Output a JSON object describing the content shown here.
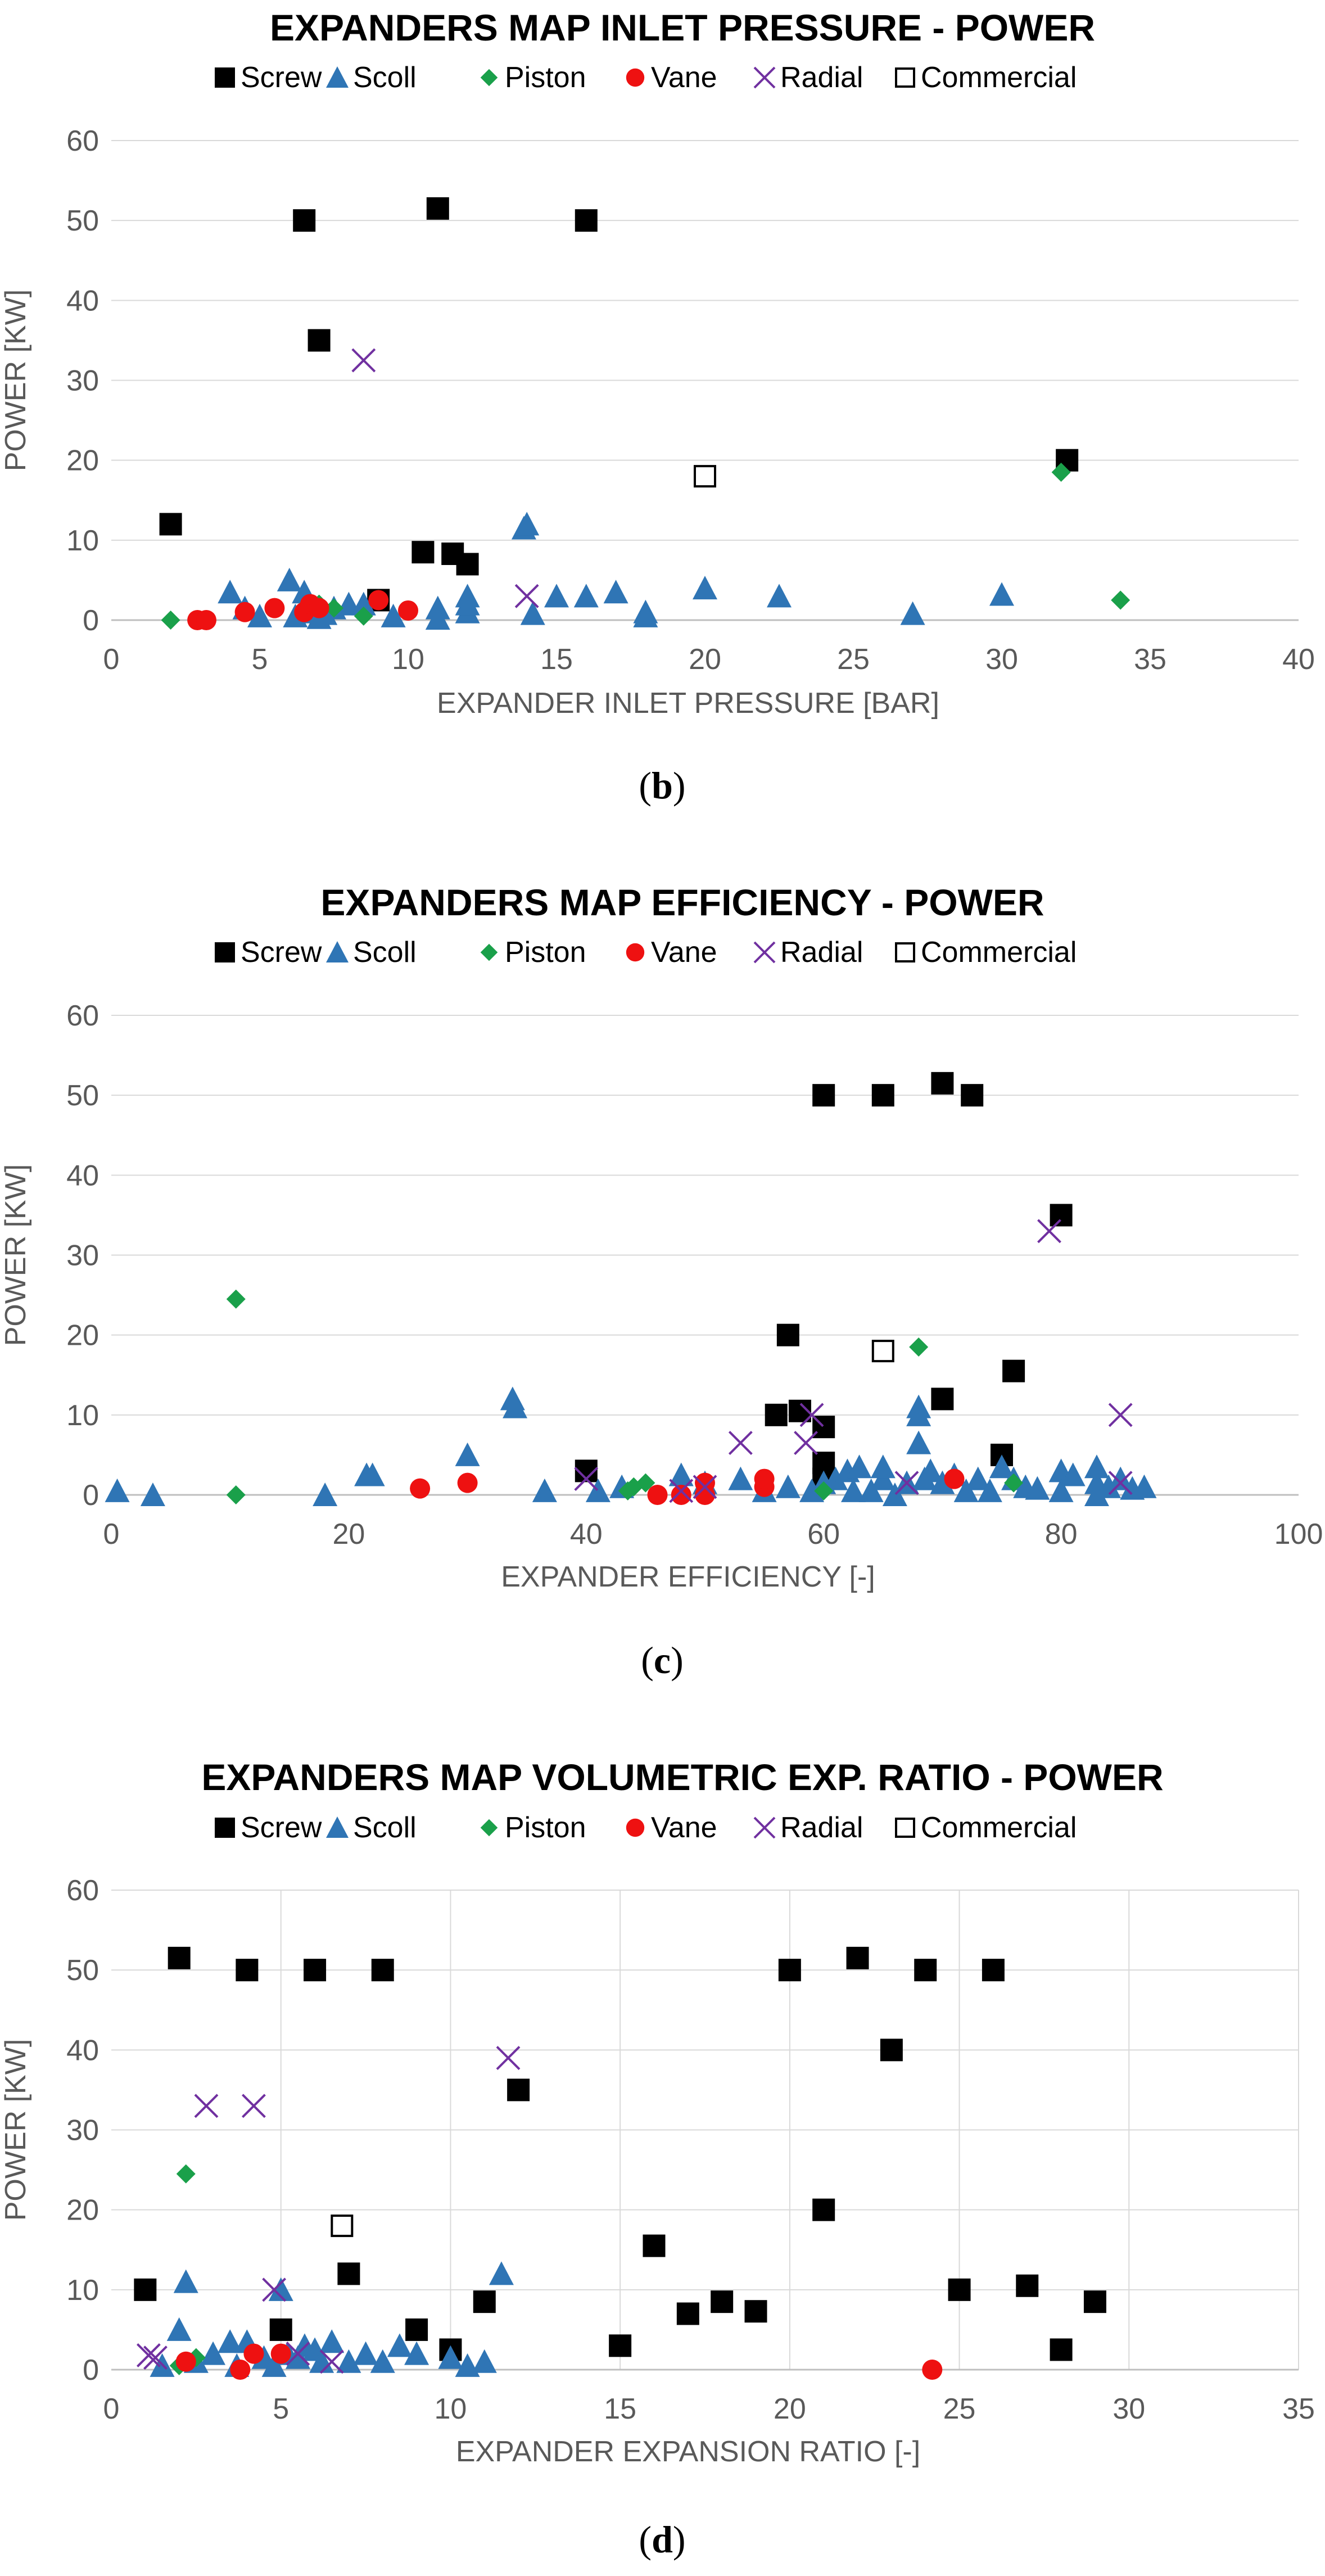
{
  "series_styles": {
    "Screw": {
      "color": "#000000",
      "marker": "square"
    },
    "Scoll": {
      "color": "#2f75b5",
      "marker": "triangle"
    },
    "Piston": {
      "color": "#1aa04a",
      "marker": "diamond"
    },
    "Vane": {
      "color": "#ee1111",
      "marker": "circle"
    },
    "Radial": {
      "color": "#7030a0",
      "marker": "x"
    },
    "Commercial": {
      "color": "#000000",
      "marker": "open-square"
    }
  },
  "chart_data": [
    {
      "type": "scatter",
      "title": "EXPANDERS MAP INLET PRESSURE - POWER",
      "xlabel": "EXPANDER INLET PRESSURE [BAR]",
      "ylabel": "POWER [KW]",
      "xlim": [
        0,
        40
      ],
      "ylim": [
        0,
        60
      ],
      "xticks": [
        0,
        5,
        10,
        15,
        20,
        25,
        30,
        35,
        40
      ],
      "yticks": [
        0,
        10,
        20,
        30,
        40,
        50,
        60
      ],
      "vgrid": false,
      "panel": {
        "open": "(",
        "letter": "b",
        "close": ")"
      },
      "legend": [
        "Screw",
        "Scoll",
        "Piston",
        "Vane",
        "Radial",
        "Commercial"
      ],
      "series": [
        {
          "name": "Screw",
          "points": [
            [
              6.5,
              50
            ],
            [
              11,
              51.5
            ],
            [
              16,
              50
            ],
            [
              7,
              35
            ],
            [
              2,
              12
            ],
            [
              10.5,
              8.5
            ],
            [
              11.5,
              8.3
            ],
            [
              12,
              7
            ],
            [
              9,
              2.5
            ],
            [
              32.2,
              20
            ]
          ]
        },
        {
          "name": "Scoll",
          "points": [
            [
              4,
              3.5
            ],
            [
              4.5,
              1.5
            ],
            [
              5,
              0.5
            ],
            [
              6,
              5
            ],
            [
              6.2,
              0.5
            ],
            [
              6.5,
              3.5
            ],
            [
              7,
              0.3
            ],
            [
              7.5,
              1.5
            ],
            [
              8,
              2
            ],
            [
              8.5,
              2
            ],
            [
              9.5,
              0.5
            ],
            [
              11,
              1.5
            ],
            [
              11,
              0.2
            ],
            [
              12,
              3
            ],
            [
              12,
              1
            ],
            [
              12,
              2
            ],
            [
              13.9,
              11.5
            ],
            [
              14,
              12
            ],
            [
              14.2,
              0.8
            ],
            [
              15,
              3
            ],
            [
              16,
              3
            ],
            [
              17,
              3.5
            ],
            [
              18,
              1
            ],
            [
              18,
              0.5
            ],
            [
              20,
              4
            ],
            [
              22.5,
              3
            ],
            [
              27,
              0.8
            ],
            [
              30,
              3.2
            ],
            [
              6.8,
              1
            ],
            [
              7.2,
              0.8
            ]
          ]
        },
        {
          "name": "Piston",
          "points": [
            [
              2,
              0
            ],
            [
              6.5,
              1.5
            ],
            [
              7,
              2
            ],
            [
              7.5,
              1.5
            ],
            [
              8.5,
              0.5
            ],
            [
              32,
              18.5
            ],
            [
              34,
              2.5
            ]
          ]
        },
        {
          "name": "Vane",
          "points": [
            [
              2.9,
              0
            ],
            [
              3.2,
              0
            ],
            [
              4.5,
              1
            ],
            [
              5.5,
              1.5
            ],
            [
              6.5,
              1
            ],
            [
              6.7,
              2
            ],
            [
              7,
              1.5
            ],
            [
              9,
              2.5
            ],
            [
              10,
              1.2
            ]
          ]
        },
        {
          "name": "Radial",
          "points": [
            [
              8.5,
              32.5
            ],
            [
              14,
              3
            ]
          ]
        },
        {
          "name": "Commercial",
          "points": [
            [
              20,
              18
            ]
          ]
        }
      ]
    },
    {
      "type": "scatter",
      "title": "EXPANDERS MAP EFFICIENCY - POWER",
      "xlabel": "EXPANDER EFFICIENCY [-]",
      "ylabel": "POWER [KW]",
      "xlim": [
        0,
        100
      ],
      "ylim": [
        0,
        60
      ],
      "xticks": [
        0,
        20,
        40,
        60,
        80,
        100
      ],
      "yticks": [
        0,
        10,
        20,
        30,
        40,
        50,
        60
      ],
      "vgrid": false,
      "panel": {
        "open": "(",
        "letter": "c",
        "close": ")"
      },
      "legend": [
        "Screw",
        "Scoll",
        "Piston",
        "Vane",
        "Radial",
        "Commercial"
      ],
      "series": [
        {
          "name": "Screw",
          "points": [
            [
              60,
              50
            ],
            [
              65,
              50
            ],
            [
              70,
              51.5
            ],
            [
              72.5,
              50
            ],
            [
              80,
              35
            ],
            [
              57,
              20
            ],
            [
              70,
              12
            ],
            [
              56,
              10
            ],
            [
              58,
              10.5
            ],
            [
              60,
              8.5
            ],
            [
              76,
              15.5
            ],
            [
              75,
              5
            ],
            [
              60,
              4
            ],
            [
              60,
              2
            ],
            [
              40,
              3
            ]
          ]
        },
        {
          "name": "Scoll",
          "points": [
            [
              0.5,
              0.5
            ],
            [
              3.5,
              0
            ],
            [
              18,
              0
            ],
            [
              21.5,
              2.5
            ],
            [
              22,
              2.5
            ],
            [
              30,
              5
            ],
            [
              33.8,
              12
            ],
            [
              34,
              11
            ],
            [
              36.5,
              0.5
            ],
            [
              41,
              0.5
            ],
            [
              43,
              1
            ],
            [
              48,
              2.5
            ],
            [
              50,
              1.5
            ],
            [
              53,
              2
            ],
            [
              55,
              0.5
            ],
            [
              57,
              1
            ],
            [
              59,
              0.5
            ],
            [
              60,
              1.5
            ],
            [
              61,
              2
            ],
            [
              62,
              3
            ],
            [
              62.5,
              0.5
            ],
            [
              63,
              3.5
            ],
            [
              64,
              0.5
            ],
            [
              65,
              2
            ],
            [
              65,
              3.5
            ],
            [
              66,
              0
            ],
            [
              67,
              1.5
            ],
            [
              68,
              10
            ],
            [
              68,
              11
            ],
            [
              68,
              6.5
            ],
            [
              68.5,
              2
            ],
            [
              69,
              3
            ],
            [
              70,
              1.5
            ],
            [
              71,
              2.5
            ],
            [
              72,
              0.5
            ],
            [
              73,
              2
            ],
            [
              74,
              0.5
            ],
            [
              75,
              3.5
            ],
            [
              76,
              2
            ],
            [
              77,
              1
            ],
            [
              78,
              0.8
            ],
            [
              80,
              3
            ],
            [
              80,
              0.5
            ],
            [
              81,
              2.5
            ],
            [
              83,
              3.5
            ],
            [
              83,
              1.5
            ],
            [
              83,
              0
            ],
            [
              84,
              1
            ],
            [
              85,
              2
            ],
            [
              86,
              0.8
            ],
            [
              87,
              1
            ]
          ]
        },
        {
          "name": "Piston",
          "points": [
            [
              10.5,
              24.5
            ],
            [
              10.5,
              0
            ],
            [
              43.5,
              0.5
            ],
            [
              44,
              1
            ],
            [
              45,
              1.5
            ],
            [
              60,
              0.5
            ],
            [
              68,
              18.5
            ],
            [
              76,
              1.5
            ]
          ]
        },
        {
          "name": "Vane",
          "points": [
            [
              26,
              0.8
            ],
            [
              30,
              1.5
            ],
            [
              46,
              0
            ],
            [
              48,
              0
            ],
            [
              50,
              0
            ],
            [
              50,
              1.5
            ],
            [
              55,
              1
            ],
            [
              55,
              2
            ],
            [
              71,
              2
            ]
          ]
        },
        {
          "name": "Radial",
          "points": [
            [
              40,
              2
            ],
            [
              48,
              0.5
            ],
            [
              50,
              1
            ],
            [
              53,
              6.5
            ],
            [
              58.5,
              6.5
            ],
            [
              59,
              10
            ],
            [
              67,
              1.5
            ],
            [
              79,
              33
            ],
            [
              85,
              10
            ],
            [
              85,
              1.5
            ]
          ]
        },
        {
          "name": "Commercial",
          "points": [
            [
              65,
              18
            ]
          ]
        }
      ]
    },
    {
      "type": "scatter",
      "title": "EXPANDERS MAP VOLUMETRIC EXP. RATIO - POWER",
      "xlabel": "EXPANDER EXPANSION RATIO [-]",
      "ylabel": "POWER [KW]",
      "xlim": [
        0,
        35
      ],
      "ylim": [
        0,
        60
      ],
      "xticks": [
        0,
        5,
        10,
        15,
        20,
        25,
        30,
        35
      ],
      "yticks": [
        0,
        10,
        20,
        30,
        40,
        50,
        60
      ],
      "vgrid": true,
      "panel": {
        "open": "(",
        "letter": "d",
        "close": ")"
      },
      "legend": [
        "Screw",
        "Scoll",
        "Piston",
        "Vane",
        "Radial",
        "Commercial"
      ],
      "series": [
        {
          "name": "Screw",
          "points": [
            [
              2,
              51.5
            ],
            [
              4,
              50
            ],
            [
              6,
              50
            ],
            [
              8,
              50
            ],
            [
              12,
              35
            ],
            [
              1,
              10
            ],
            [
              7,
              12
            ],
            [
              5,
              5
            ],
            [
              9,
              5
            ],
            [
              10,
              2.5
            ],
            [
              11,
              8.5
            ],
            [
              15,
              3
            ],
            [
              16,
              15.5
            ],
            [
              17,
              7
            ],
            [
              18,
              8.5
            ],
            [
              19,
              7.3
            ],
            [
              20,
              50
            ],
            [
              21,
              20
            ],
            [
              22,
              51.5
            ],
            [
              23,
              40
            ],
            [
              24,
              50
            ],
            [
              25,
              10
            ],
            [
              26,
              50
            ],
            [
              27,
              10.5
            ],
            [
              28,
              2.5
            ],
            [
              29,
              8.5
            ]
          ]
        },
        {
          "name": "Scoll",
          "points": [
            [
              1.5,
              0.5
            ],
            [
              2,
              5
            ],
            [
              2.2,
              11
            ],
            [
              2.5,
              1
            ],
            [
              3,
              2
            ],
            [
              3.5,
              3.5
            ],
            [
              3.7,
              0.5
            ],
            [
              4,
              3.5
            ],
            [
              4.5,
              1.5
            ],
            [
              4.8,
              0.5
            ],
            [
              5,
              10
            ],
            [
              5.2,
              2
            ],
            [
              5.5,
              1.5
            ],
            [
              5.7,
              3
            ],
            [
              6,
              2.5
            ],
            [
              6.2,
              1
            ],
            [
              6.5,
              3.5
            ],
            [
              7,
              1
            ],
            [
              7.5,
              2
            ],
            [
              8,
              1
            ],
            [
              8.5,
              3
            ],
            [
              9,
              2
            ],
            [
              10.5,
              0.5
            ],
            [
              11,
              1
            ],
            [
              11.5,
              12
            ],
            [
              10,
              1.5
            ]
          ]
        },
        {
          "name": "Piston",
          "points": [
            [
              2.2,
              24.5
            ],
            [
              2,
              0.5
            ],
            [
              2.5,
              1.5
            ]
          ]
        },
        {
          "name": "Vane",
          "points": [
            [
              2.2,
              1
            ],
            [
              3.8,
              0
            ],
            [
              4.2,
              2
            ],
            [
              5,
              2
            ],
            [
              24.2,
              0
            ]
          ]
        },
        {
          "name": "Radial",
          "points": [
            [
              1.1,
              1.8
            ],
            [
              1.3,
              1.5
            ],
            [
              2.8,
              33
            ],
            [
              4.2,
              33
            ],
            [
              4.8,
              10
            ],
            [
              5.5,
              2
            ],
            [
              6.5,
              1
            ],
            [
              11.7,
              39
            ]
          ]
        },
        {
          "name": "Commercial",
          "points": [
            [
              6.8,
              18
            ]
          ]
        }
      ]
    }
  ]
}
